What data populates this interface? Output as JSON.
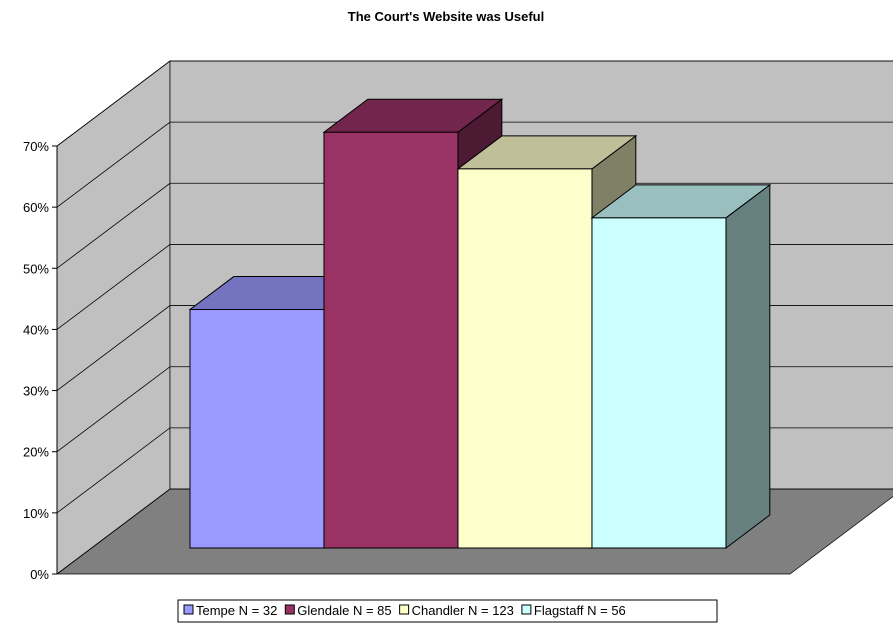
{
  "chart_data": {
    "type": "bar3d",
    "title": "The Court's Website was Useful",
    "series": [
      {
        "name": "Tempe N = 32",
        "color": "#9999ff",
        "top": "#7373bf",
        "side": "#4d4d80",
        "values": [
          39
        ]
      },
      {
        "name": "Glendale N = 85",
        "color": "#993366",
        "top": "#73264d",
        "side": "#4d1a33",
        "values": [
          68
        ]
      },
      {
        "name": "Chandler N = 123",
        "color": "#ffffcc",
        "top": "#bfbf99",
        "side": "#808066",
        "values": [
          62
        ]
      },
      {
        "name": "Flagstaff N = 56",
        "color": "#ccffff",
        "top": "#99bfbf",
        "side": "#668080",
        "values": [
          54
        ]
      }
    ],
    "ylim": [
      0,
      70
    ],
    "yticks": [
      {
        "value": 0,
        "label": "0%"
      },
      {
        "value": 10,
        "label": "10%"
      },
      {
        "value": 20,
        "label": "20%"
      },
      {
        "value": 30,
        "label": "30%"
      },
      {
        "value": 40,
        "label": "40%"
      },
      {
        "value": 50,
        "label": "50%"
      },
      {
        "value": 60,
        "label": "60%"
      },
      {
        "value": 70,
        "label": "70%"
      }
    ],
    "grid": true,
    "legend": "bottom",
    "wall_color": "#c0c0c0",
    "floor_color": "#808080"
  }
}
